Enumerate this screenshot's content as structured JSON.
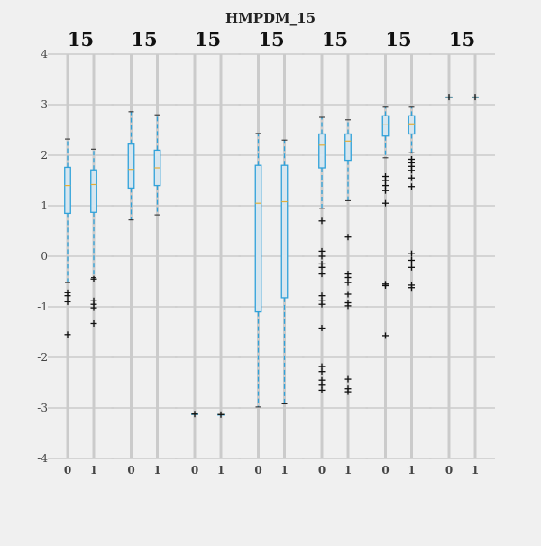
{
  "chart_data": {
    "type": "box",
    "title": "HMPDM_15",
    "ylim": [
      -4,
      4
    ],
    "yticks": [
      -4,
      -3,
      -2,
      -1,
      0,
      1,
      2,
      3,
      4
    ],
    "grid": true,
    "colors": {
      "background": "#f0f0f0",
      "grid": "#cbcbcb",
      "box_edge": "#30a2da",
      "box_fill": "#d7e6ef",
      "median": "#e5ae38",
      "whisker": "#30a2da",
      "flier": "#111111"
    },
    "panels": [
      {
        "label": "15",
        "groups": [
          {
            "name": "0",
            "whislo": -0.52,
            "q1": 0.85,
            "med": 1.4,
            "q3": 1.76,
            "whishi": 2.32,
            "fliers": [
              -0.72,
              -0.78,
              -0.9,
              -1.55
            ]
          },
          {
            "name": "1",
            "whislo": -0.42,
            "q1": 0.87,
            "med": 1.42,
            "q3": 1.71,
            "whishi": 2.12,
            "fliers": [
              -0.45,
              -0.88,
              -0.95,
              -1.02,
              -1.33
            ]
          }
        ]
      },
      {
        "label": "15",
        "groups": [
          {
            "name": "0",
            "whislo": 0.72,
            "q1": 1.35,
            "med": 1.72,
            "q3": 2.22,
            "whishi": 2.86,
            "fliers": []
          },
          {
            "name": "1",
            "whislo": 0.82,
            "q1": 1.4,
            "med": 1.75,
            "q3": 2.1,
            "whishi": 2.8,
            "fliers": []
          }
        ]
      },
      {
        "label": "15",
        "groups": [
          {
            "name": "0",
            "whislo": -3.12,
            "q1": -3.12,
            "med": -3.12,
            "q3": -3.12,
            "whishi": -3.12,
            "fliers": [
              -3.12
            ]
          },
          {
            "name": "1",
            "whislo": -3.13,
            "q1": -3.13,
            "med": -3.13,
            "q3": -3.13,
            "whishi": -3.13,
            "fliers": [
              -3.13
            ]
          }
        ]
      },
      {
        "label": "15",
        "groups": [
          {
            "name": "0",
            "whislo": -2.98,
            "q1": -1.1,
            "med": 1.05,
            "q3": 1.8,
            "whishi": 2.43,
            "fliers": []
          },
          {
            "name": "1",
            "whislo": -2.92,
            "q1": -0.82,
            "med": 1.08,
            "q3": 1.8,
            "whishi": 2.3,
            "fliers": []
          }
        ]
      },
      {
        "label": "15",
        "groups": [
          {
            "name": "0",
            "whislo": 0.95,
            "q1": 1.75,
            "med": 2.2,
            "q3": 2.42,
            "whishi": 2.75,
            "fliers": [
              0.7,
              0.1,
              0.0,
              -0.15,
              -0.22,
              -0.35,
              -0.78,
              -0.88,
              -0.95,
              -1.42,
              -2.18,
              -2.28,
              -2.45,
              -2.55,
              -2.65
            ]
          },
          {
            "name": "1",
            "whislo": 1.1,
            "q1": 1.9,
            "med": 2.28,
            "q3": 2.42,
            "whishi": 2.7,
            "fliers": [
              0.38,
              -0.35,
              -0.42,
              -0.52,
              -0.75,
              -0.92,
              -0.98,
              -2.43,
              -2.62,
              -2.68
            ]
          }
        ]
      },
      {
        "label": "15",
        "groups": [
          {
            "name": "0",
            "whislo": 1.95,
            "q1": 2.38,
            "med": 2.6,
            "q3": 2.78,
            "whishi": 2.95,
            "fliers": [
              1.58,
              1.5,
              1.4,
              1.3,
              1.05,
              -0.55,
              -0.58,
              -1.57
            ]
          },
          {
            "name": "1",
            "whislo": 2.05,
            "q1": 2.42,
            "med": 2.62,
            "q3": 2.78,
            "whishi": 2.95,
            "fliers": [
              1.92,
              1.85,
              1.78,
              1.7,
              1.55,
              1.38,
              0.05,
              -0.08,
              -0.22,
              -0.57,
              -0.62
            ]
          }
        ]
      },
      {
        "label": "15",
        "groups": [
          {
            "name": "0",
            "whislo": 3.15,
            "q1": 3.15,
            "med": 3.15,
            "q3": 3.15,
            "whishi": 3.15,
            "fliers": [
              3.15
            ]
          },
          {
            "name": "1",
            "whislo": 3.15,
            "q1": 3.15,
            "med": 3.15,
            "q3": 3.15,
            "whishi": 3.15,
            "fliers": [
              3.15
            ]
          }
        ]
      }
    ]
  }
}
